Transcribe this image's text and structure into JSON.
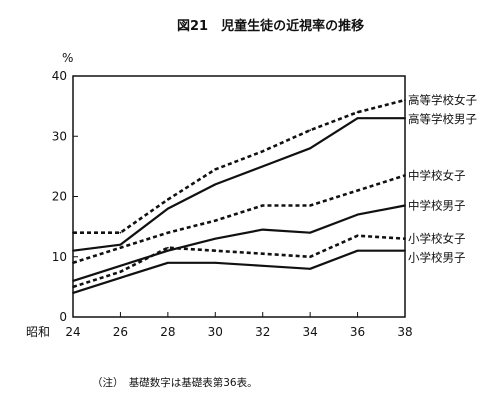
{
  "chart_data": {
    "type": "line",
    "title": "図21　児童生徒の近視率の推移",
    "ylabel": "%",
    "xlabel": "",
    "x_era_label": "昭和",
    "x": [
      24,
      26,
      28,
      30,
      32,
      34,
      36,
      38
    ],
    "xticks": [
      "24",
      "26",
      "28",
      "30",
      "32",
      "34",
      "36",
      "38"
    ],
    "ylim": [
      0,
      40
    ],
    "yticks": [
      "0",
      "10",
      "20",
      "30",
      "40"
    ],
    "grid": false,
    "note": "（注）　基礎数字は基礎表第36表。",
    "series": [
      {
        "name": "高等学校女子",
        "style": "dashed",
        "values": [
          14,
          14,
          19.5,
          24.5,
          27.5,
          31,
          34,
          36
        ]
      },
      {
        "name": "高等学校男子",
        "style": "solid",
        "values": [
          11,
          12,
          18,
          22,
          25,
          28,
          33,
          33
        ]
      },
      {
        "name": "中学校女子",
        "style": "dashed",
        "values": [
          9,
          11.5,
          14,
          16,
          18.5,
          18.5,
          21,
          23.5
        ]
      },
      {
        "name": "中学校男子",
        "style": "solid",
        "values": [
          6,
          8.5,
          11,
          13,
          14.5,
          14,
          17,
          18.5
        ]
      },
      {
        "name": "小学校女子",
        "style": "dashed",
        "values": [
          5,
          7.5,
          11.5,
          11,
          10.5,
          10,
          13.5,
          13
        ]
      },
      {
        "name": "小学校男子",
        "style": "solid",
        "values": [
          4,
          6.5,
          9,
          9,
          8.5,
          8,
          11,
          11
        ]
      }
    ]
  }
}
